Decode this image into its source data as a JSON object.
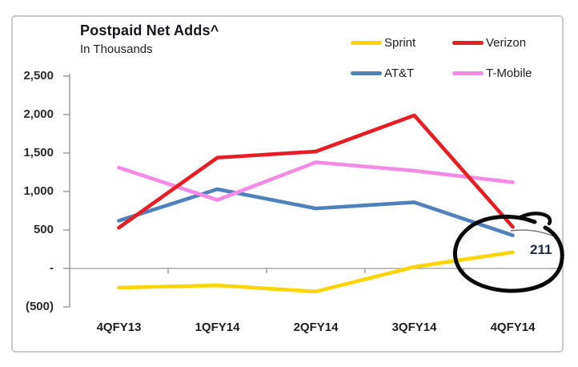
{
  "chart_data": {
    "type": "line",
    "title": "Postpaid Net Adds^",
    "subtitle": "In Thousands",
    "categories": [
      "4QFY13",
      "1QFY14",
      "2QFY14",
      "3QFY14",
      "4QFY14"
    ],
    "series": [
      {
        "name": "Sprint",
        "color": "#FFD400",
        "values": [
          -250,
          -220,
          -300,
          20,
          211
        ]
      },
      {
        "name": "Verizon",
        "color": "#E81C23",
        "values": [
          530,
          1440,
          1520,
          1990,
          540
        ]
      },
      {
        "name": "AT&T",
        "color": "#4F81BD",
        "values": [
          620,
          1030,
          780,
          860,
          430
        ]
      },
      {
        "name": "T-Mobile",
        "color": "#F58AE6",
        "values": [
          1310,
          890,
          1380,
          1270,
          1120
        ]
      }
    ],
    "plot_order": [
      2,
      3,
      1,
      0
    ],
    "y_axis": {
      "tick_labels": [
        "2,500",
        "2,000",
        "1,500",
        "1,000",
        "500",
        "-",
        "(500)"
      ],
      "tick_values": [
        2500,
        2000,
        1500,
        1000,
        500,
        0,
        -500
      ],
      "min": -500,
      "max": 2500,
      "units": "thousands"
    },
    "x_axis": {
      "position": "zero-line"
    },
    "gridlines": false,
    "legend_position": "top-right",
    "axis_color": "#8C8C8C",
    "annotation": {
      "label": "211",
      "series": "Sprint",
      "category": "4QFY14",
      "shape": "hand-drawn-circle",
      "color": "#000000"
    }
  }
}
